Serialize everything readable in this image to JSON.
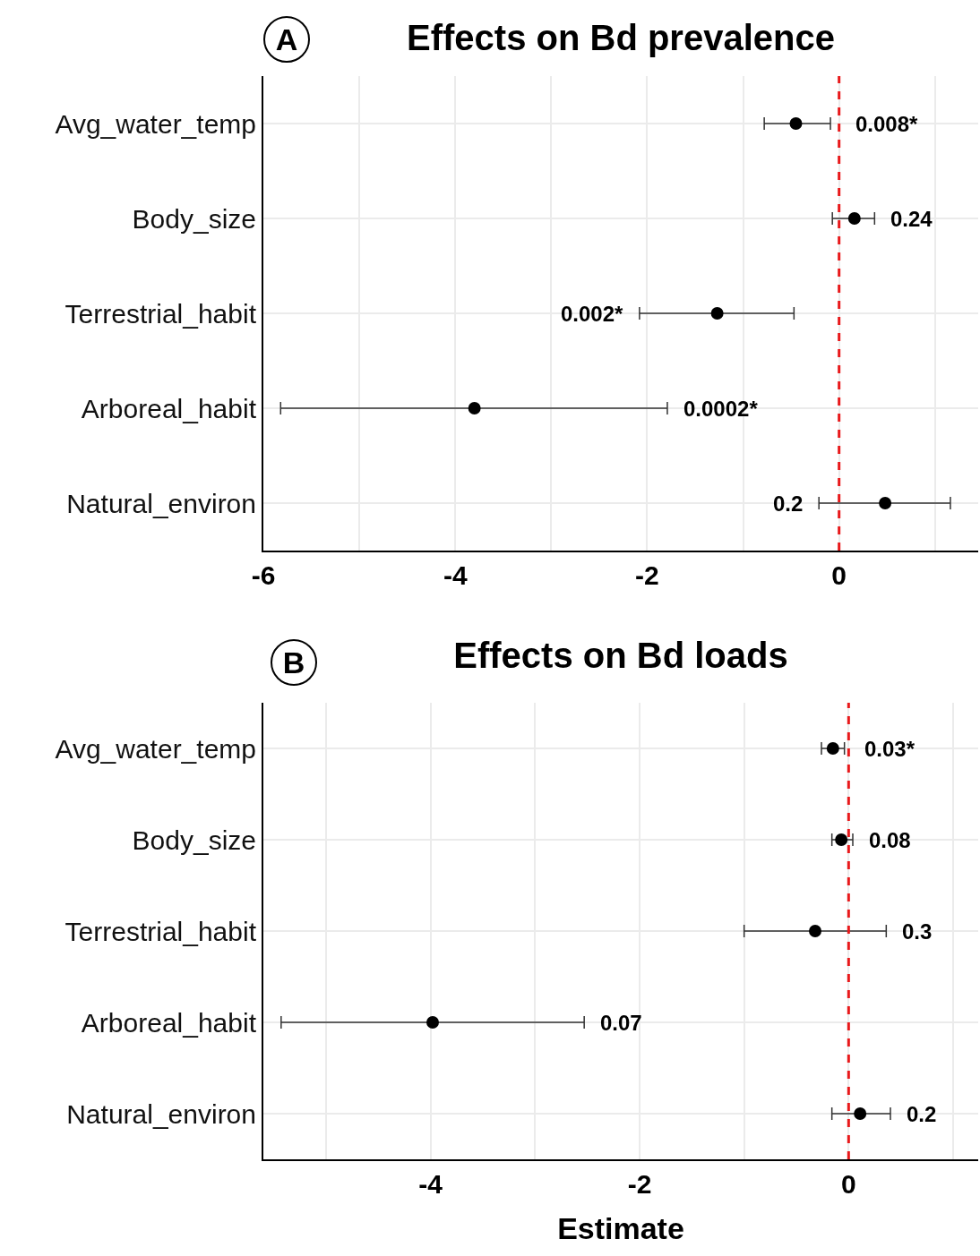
{
  "chart_data": [
    {
      "type": "scatter",
      "orientation": "horizontal",
      "title": "Effects on Bd prevalence",
      "categories": [
        "Avg_water_temp",
        "Body_size",
        "Terrestrial_habit",
        "Arboreal_habit",
        "Natural_environ"
      ],
      "series": [
        {
          "color": "#000000",
          "values": [
            -0.45,
            0.16,
            -1.27,
            -3.8,
            0.48
          ],
          "errors": [
            [
              -0.78,
              -0.09
            ],
            [
              -0.07,
              0.37
            ],
            [
              -2.08,
              -0.47
            ],
            [
              -5.82,
              -1.79
            ],
            [
              -0.21,
              1.16
            ]
          ]
        }
      ],
      "xlim": [
        -6,
        1.45
      ],
      "xticks": [
        -6,
        {
          "value": -5,
          "label": null
        },
        -4,
        {
          "value": -3,
          "label": null
        },
        -2,
        {
          "value": -1,
          "label": null
        },
        0,
        {
          "value": 1,
          "label": null
        }
      ],
      "ref_lines": [
        {
          "axis": "x",
          "value": 0,
          "color": "#e8191b",
          "line_style": "dashed"
        }
      ],
      "annotations": [
        "A",
        "0.008*",
        "0.24",
        "0.002*",
        "0.0002*",
        "0.2"
      ],
      "grid": true,
      "marker": "circle"
    },
    {
      "type": "scatter",
      "orientation": "horizontal",
      "title": "Effects on Bd loads",
      "xlabel": "Estimate",
      "categories": [
        "Avg_water_temp",
        "Body_size",
        "Terrestrial_habit",
        "Arboreal_habit",
        "Natural_environ"
      ],
      "series": [
        {
          "color": "#000000",
          "values": [
            -0.15,
            -0.07,
            -0.32,
            -3.98,
            0.11
          ],
          "errors": [
            [
              -0.26,
              -0.04
            ],
            [
              -0.16,
              0.04
            ],
            [
              -1.0,
              0.36
            ],
            [
              -5.43,
              -2.53
            ],
            [
              -0.16,
              0.4
            ]
          ]
        }
      ],
      "xlim": [
        -5.6,
        1.24
      ],
      "xticks": [
        {
          "value": -5,
          "label": null
        },
        -4,
        {
          "value": -3,
          "label": null
        },
        -2,
        {
          "value": -1,
          "label": null
        },
        0,
        {
          "value": 1,
          "label": null
        }
      ],
      "ref_lines": [
        {
          "axis": "x",
          "value": 0,
          "color": "#e8191b",
          "line_style": "dashed"
        }
      ],
      "annotations": [
        "B",
        "0.03*",
        "0.08",
        "0.3",
        "0.07",
        "0.2"
      ],
      "grid": true,
      "marker": "circle"
    }
  ]
}
